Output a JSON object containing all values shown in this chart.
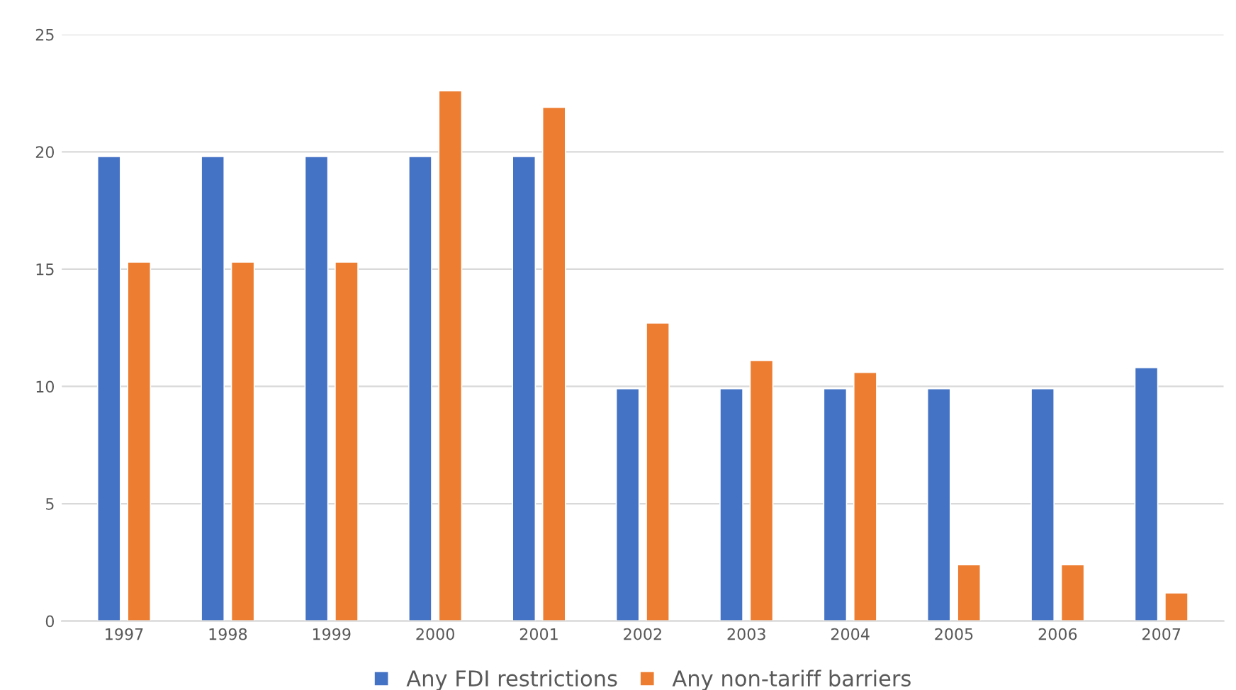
{
  "chart_data": {
    "type": "bar",
    "categories": [
      "1997",
      "1998",
      "1999",
      "2000",
      "2001",
      "2002",
      "2003",
      "2004",
      "2005",
      "2006",
      "2007"
    ],
    "series": [
      {
        "name": "Any FDI restrictions",
        "color": "#4472c4",
        "values": [
          19.8,
          19.8,
          19.8,
          19.8,
          19.8,
          9.9,
          9.9,
          9.9,
          9.9,
          9.9,
          10.8
        ]
      },
      {
        "name": "Any non-tariff barriers",
        "color": "#ed7d31",
        "values": [
          15.3,
          15.3,
          15.3,
          22.6,
          21.9,
          12.7,
          11.1,
          10.6,
          2.4,
          2.4,
          1.2
        ]
      }
    ],
    "ylim": [
      0,
      25
    ],
    "yticks": [
      0,
      5,
      10,
      15,
      20,
      25
    ],
    "grid": "y",
    "legend": "bottom"
  }
}
